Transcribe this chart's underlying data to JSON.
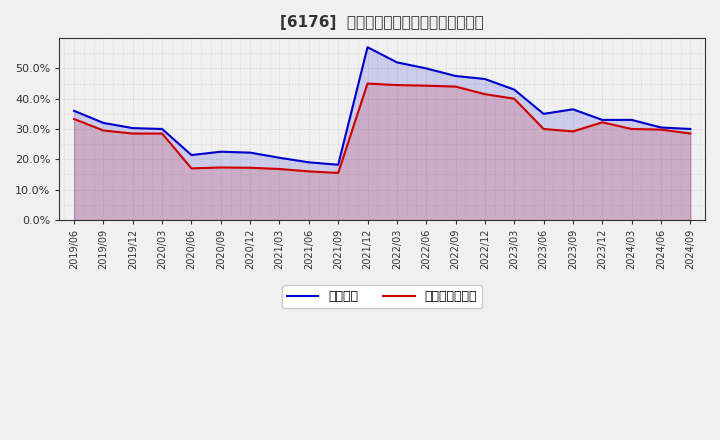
{
  "title": "[6176]  固定比率、固定長期適合率の推移",
  "ylim": [
    0.0,
    0.6
  ],
  "yticks": [
    0.0,
    0.1,
    0.2,
    0.3,
    0.4,
    0.5
  ],
  "background_color": "#f0f0f0",
  "plot_bg_color": "#f0f0f0",
  "grid_color": "#cccccc",
  "line1_color": "#0000cc",
  "line2_color": "#cc0000",
  "line1_label": "固定比率",
  "line2_label": "固定長期適合率",
  "dates": [
    "2019/06",
    "2019/09",
    "2019/12",
    "2020/03",
    "2020/06",
    "2020/09",
    "2020/12",
    "2021/03",
    "2021/06",
    "2021/09",
    "2021/12",
    "2022/03",
    "2022/06",
    "2022/09",
    "2022/12",
    "2023/03",
    "2023/06",
    "2023/09",
    "2023/12",
    "2024/03",
    "2024/06",
    "2024/09"
  ],
  "fixed_ratio": [
    0.36,
    0.32,
    0.303,
    0.3,
    0.214,
    0.225,
    0.222,
    0.205,
    0.19,
    0.182,
    0.57,
    0.52,
    0.5,
    0.475,
    0.465,
    0.43,
    0.35,
    0.365,
    0.33,
    0.33,
    0.305,
    0.3
  ],
  "fixed_long_ratio": [
    0.333,
    0.295,
    0.285,
    0.285,
    0.17,
    0.173,
    0.172,
    0.168,
    0.16,
    0.155,
    0.45,
    0.445,
    0.443,
    0.44,
    0.415,
    0.4,
    0.3,
    0.292,
    0.322,
    0.3,
    0.298,
    0.285
  ],
  "title_color": "#333333",
  "tick_color": "#333333",
  "spine_color": "#333333"
}
